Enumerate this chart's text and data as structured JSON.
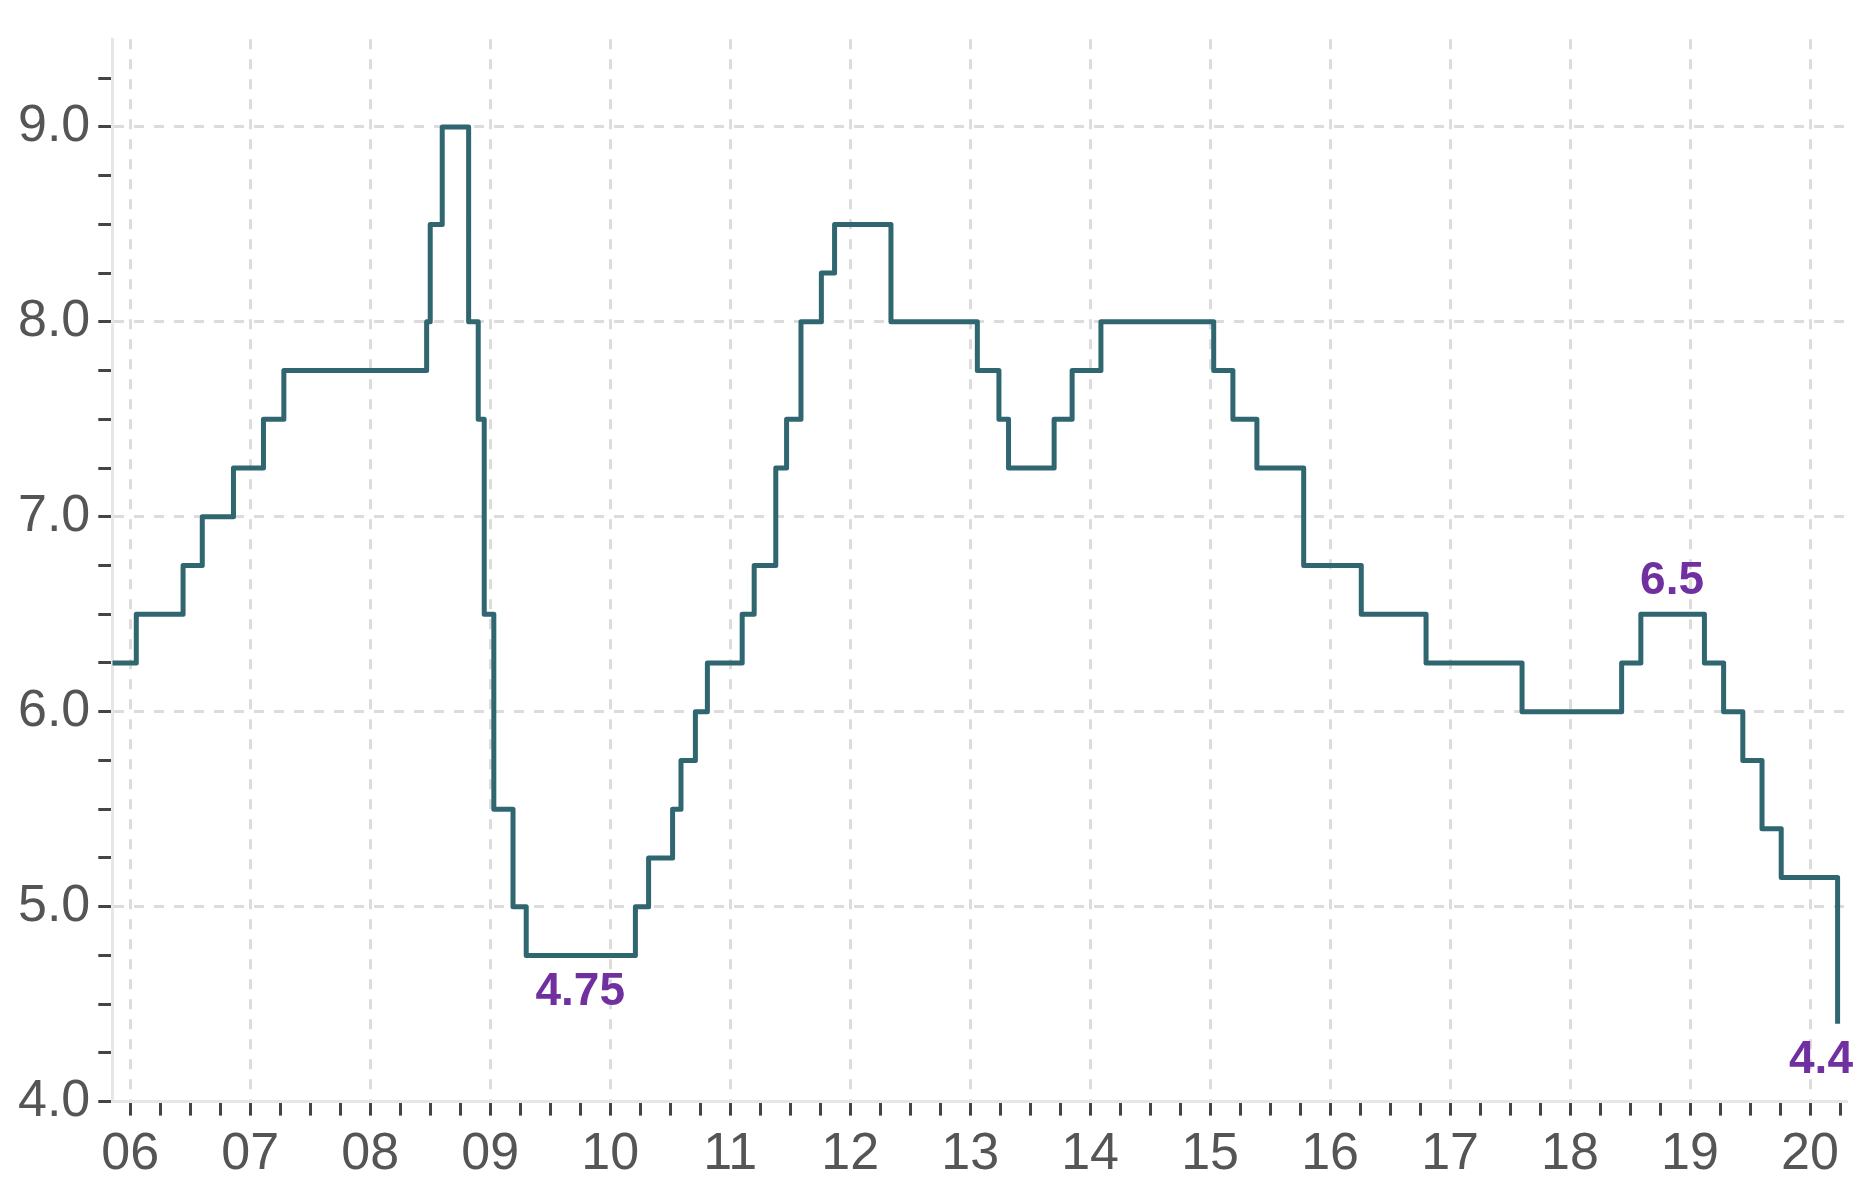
{
  "chart_data": {
    "type": "step",
    "color": "#2f6670",
    "line_style": "solid",
    "marker": "none",
    "legend": false,
    "grid": true,
    "x": [
      2005.85,
      2006.05,
      2006.44,
      2006.6,
      2006.86,
      2007.11,
      2007.28,
      2008.47,
      2008.5,
      2008.6,
      2008.82,
      2008.9,
      2008.95,
      2009.03,
      2009.19,
      2009.3,
      2010.21,
      2010.32,
      2010.52,
      2010.59,
      2010.71,
      2010.81,
      2011.1,
      2011.2,
      2011.38,
      2011.47,
      2011.59,
      2011.76,
      2011.87,
      2012.34,
      2013.06,
      2013.24,
      2013.32,
      2013.7,
      2013.85,
      2014.09,
      2015.03,
      2015.19,
      2015.39,
      2015.78,
      2016.26,
      2016.8,
      2017.6,
      2018.43,
      2018.59,
      2019.12,
      2019.28,
      2019.44,
      2019.6,
      2019.76,
      2020.23
    ],
    "values": [
      6.25,
      6.5,
      6.75,
      7.0,
      7.25,
      7.5,
      7.75,
      8.0,
      8.5,
      9.0,
      8.0,
      7.5,
      6.5,
      5.5,
      5.0,
      4.75,
      5.0,
      5.25,
      5.5,
      5.75,
      6.0,
      6.25,
      6.5,
      6.75,
      7.25,
      7.5,
      8.0,
      8.25,
      8.5,
      8.0,
      7.75,
      7.5,
      7.25,
      7.5,
      7.75,
      8.0,
      7.75,
      7.5,
      7.25,
      6.75,
      6.5,
      6.25,
      6.0,
      6.25,
      6.5,
      6.25,
      6.0,
      5.75,
      5.4,
      5.15,
      4.4
    ],
    "xlim": [
      2005.85,
      2020.3
    ],
    "xticks": [
      {
        "value": 2006,
        "label": "06"
      },
      {
        "value": 2006.25,
        "label": null
      },
      {
        "value": 2006.5,
        "label": null
      },
      {
        "value": 2006.75,
        "label": null
      },
      {
        "value": 2007,
        "label": "07"
      },
      {
        "value": 2007.25,
        "label": null
      },
      {
        "value": 2007.5,
        "label": null
      },
      {
        "value": 2007.75,
        "label": null
      },
      {
        "value": 2008,
        "label": "08"
      },
      {
        "value": 2008.25,
        "label": null
      },
      {
        "value": 2008.5,
        "label": null
      },
      {
        "value": 2008.75,
        "label": null
      },
      {
        "value": 2009,
        "label": "09"
      },
      {
        "value": 2009.25,
        "label": null
      },
      {
        "value": 2009.5,
        "label": null
      },
      {
        "value": 2009.75,
        "label": null
      },
      {
        "value": 2010,
        "label": "10"
      },
      {
        "value": 2010.25,
        "label": null
      },
      {
        "value": 2010.5,
        "label": null
      },
      {
        "value": 2010.75,
        "label": null
      },
      {
        "value": 2011,
        "label": "11"
      },
      {
        "value": 2011.25,
        "label": null
      },
      {
        "value": 2011.5,
        "label": null
      },
      {
        "value": 2011.75,
        "label": null
      },
      {
        "value": 2012,
        "label": "12"
      },
      {
        "value": 2012.25,
        "label": null
      },
      {
        "value": 2012.5,
        "label": null
      },
      {
        "value": 2012.75,
        "label": null
      },
      {
        "value": 2013,
        "label": "13"
      },
      {
        "value": 2013.25,
        "label": null
      },
      {
        "value": 2013.5,
        "label": null
      },
      {
        "value": 2013.75,
        "label": null
      },
      {
        "value": 2014,
        "label": "14"
      },
      {
        "value": 2014.25,
        "label": null
      },
      {
        "value": 2014.5,
        "label": null
      },
      {
        "value": 2014.75,
        "label": null
      },
      {
        "value": 2015,
        "label": "15"
      },
      {
        "value": 2015.25,
        "label": null
      },
      {
        "value": 2015.5,
        "label": null
      },
      {
        "value": 2015.75,
        "label": null
      },
      {
        "value": 2016,
        "label": "16"
      },
      {
        "value": 2016.25,
        "label": null
      },
      {
        "value": 2016.5,
        "label": null
      },
      {
        "value": 2016.75,
        "label": null
      },
      {
        "value": 2017,
        "label": "17"
      },
      {
        "value": 2017.25,
        "label": null
      },
      {
        "value": 2017.5,
        "label": null
      },
      {
        "value": 2017.75,
        "label": null
      },
      {
        "value": 2018,
        "label": "18"
      },
      {
        "value": 2018.25,
        "label": null
      },
      {
        "value": 2018.5,
        "label": null
      },
      {
        "value": 2018.75,
        "label": null
      },
      {
        "value": 2019,
        "label": "19"
      },
      {
        "value": 2019.25,
        "label": null
      },
      {
        "value": 2019.5,
        "label": null
      },
      {
        "value": 2019.75,
        "label": null
      },
      {
        "value": 2020,
        "label": "20"
      },
      {
        "value": 2020.25,
        "label": null
      }
    ],
    "ylim": [
      4.0,
      9.45
    ],
    "yticks": [
      {
        "value": 4.0,
        "label": "4.0"
      },
      {
        "value": 4.25,
        "label": null
      },
      {
        "value": 4.5,
        "label": null
      },
      {
        "value": 4.75,
        "label": null
      },
      {
        "value": 5.0,
        "label": "5.0"
      },
      {
        "value": 5.25,
        "label": null
      },
      {
        "value": 5.5,
        "label": null
      },
      {
        "value": 5.75,
        "label": null
      },
      {
        "value": 6.0,
        "label": "6.0"
      },
      {
        "value": 6.25,
        "label": null
      },
      {
        "value": 6.5,
        "label": null
      },
      {
        "value": 6.75,
        "label": null
      },
      {
        "value": 7.0,
        "label": "7.0"
      },
      {
        "value": 7.25,
        "label": null
      },
      {
        "value": 7.5,
        "label": null
      },
      {
        "value": 7.75,
        "label": null
      },
      {
        "value": 8.0,
        "label": "8.0"
      },
      {
        "value": 8.25,
        "label": null
      },
      {
        "value": 8.5,
        "label": null
      },
      {
        "value": 8.75,
        "label": null
      },
      {
        "value": 9.0,
        "label": "9.0"
      },
      {
        "value": 9.25,
        "label": null
      }
    ],
    "annotations": [
      {
        "text": "4.75",
        "x": 2009.75,
        "y": 4.75
      },
      {
        "text": "6.5",
        "x": 2018.85,
        "y": 6.5
      },
      {
        "text": "4.4",
        "x": 2020.23,
        "y": 4.4
      }
    ]
  }
}
